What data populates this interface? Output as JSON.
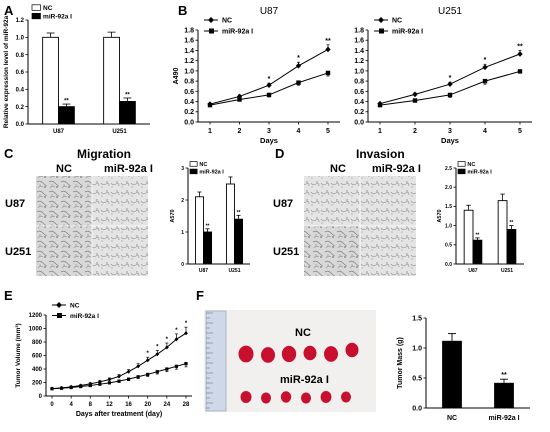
{
  "panels": {
    "A": {
      "letter": "A"
    },
    "B": {
      "letter": "B"
    },
    "C": {
      "letter": "C",
      "title": "Migration"
    },
    "D": {
      "letter": "D",
      "title": "Invasion"
    },
    "E": {
      "letter": "E"
    },
    "F": {
      "letter": "F",
      "photo_labels": [
        "NC",
        "miR-92a I"
      ]
    }
  },
  "micrographs": {
    "col_labels": [
      "NC",
      "miR-92a I"
    ],
    "row_labels": [
      "U87",
      "U251"
    ]
  },
  "significance": "**",
  "significance_single": "*",
  "colors": {
    "nc_fill": "#ffffff",
    "inhibitor_fill": "#000000",
    "tumor": "#c8102e",
    "photo_bg": "#f2efef"
  },
  "chart_data": [
    {
      "id": "A",
      "type": "bar",
      "categories": [
        "U87",
        "U251"
      ],
      "series": [
        {
          "name": "NC",
          "values": [
            1.0,
            1.0
          ],
          "errors": [
            0.05,
            0.06
          ]
        },
        {
          "name": "miR-92a I",
          "values": [
            0.2,
            0.26
          ],
          "errors": [
            0.03,
            0.04
          ]
        }
      ],
      "ylabel": "Relative expression level of miR-92a",
      "ylim": [
        0,
        1.2
      ],
      "yticks": [
        "0.0",
        "0.2",
        "0.4",
        "0.6",
        "0.8",
        "1.0",
        "1.2"
      ],
      "annotations": [
        "**",
        "**"
      ],
      "legend": "top-left"
    },
    {
      "id": "B1",
      "type": "line",
      "title": "U87",
      "x": [
        1,
        2,
        3,
        4,
        5
      ],
      "series": [
        {
          "name": "NC",
          "values": [
            0.35,
            0.5,
            0.72,
            1.1,
            1.42
          ],
          "errors": [
            0.02,
            0.03,
            0.04,
            0.07,
            0.09
          ]
        },
        {
          "name": "miR-92a I",
          "values": [
            0.33,
            0.44,
            0.53,
            0.77,
            0.96
          ],
          "errors": [
            0.02,
            0.03,
            0.04,
            0.05,
            0.06
          ]
        }
      ],
      "xlabel": "Days",
      "ylabel": "A490",
      "ylim": [
        0,
        1.8
      ],
      "yticks": [
        "0.0",
        "0.2",
        "0.4",
        "0.6",
        "0.8",
        "1.0",
        "1.2",
        "1.4",
        "1.6",
        "1.8"
      ],
      "annotations": [
        "*",
        "*",
        "**"
      ],
      "legend": "top-left"
    },
    {
      "id": "B2",
      "type": "line",
      "title": "U251",
      "x": [
        1,
        2,
        3,
        4,
        5
      ],
      "series": [
        {
          "name": "NC",
          "values": [
            0.36,
            0.54,
            0.74,
            1.07,
            1.33
          ],
          "errors": [
            0.02,
            0.03,
            0.04,
            0.06,
            0.07
          ]
        },
        {
          "name": "miR-92a I",
          "values": [
            0.33,
            0.42,
            0.53,
            0.8,
            0.99
          ],
          "errors": [
            0.02,
            0.03,
            0.05,
            0.06,
            0.03
          ]
        }
      ],
      "xlabel": "Days",
      "ylim": [
        0,
        1.8
      ],
      "yticks": [
        "0.0",
        "0.2",
        "0.4",
        "0.6",
        "0.8",
        "1.0",
        "1.2",
        "1.4",
        "1.6",
        "1.8"
      ],
      "annotations": [
        "*",
        "*",
        "**"
      ],
      "legend": "top-left"
    },
    {
      "id": "C",
      "type": "bar",
      "categories": [
        "U87",
        "U251"
      ],
      "series": [
        {
          "name": "NC",
          "values": [
            2.1,
            2.5
          ],
          "errors": [
            0.15,
            0.22
          ]
        },
        {
          "name": "miR-92a I",
          "values": [
            1.0,
            1.4
          ],
          "errors": [
            0.1,
            0.12
          ]
        }
      ],
      "ylabel": "A570",
      "ylim": [
        0,
        3
      ],
      "yticks": [
        "0",
        "1",
        "2",
        "3"
      ],
      "annotations": [
        "**",
        "**"
      ],
      "legend": "top-left"
    },
    {
      "id": "D",
      "type": "bar",
      "categories": [
        "U87",
        "U251"
      ],
      "series": [
        {
          "name": "NC",
          "values": [
            1.4,
            1.65
          ],
          "errors": [
            0.13,
            0.17
          ]
        },
        {
          "name": "miR-92a I",
          "values": [
            0.62,
            0.9
          ],
          "errors": [
            0.06,
            0.1
          ]
        }
      ],
      "ylabel": "A570",
      "ylim": [
        0,
        2.5
      ],
      "yticks": [
        "0.0",
        "0.5",
        "1.0",
        "1.5",
        "2.0",
        "2.5"
      ],
      "annotations": [
        "**",
        "**"
      ],
      "legend": "top-left"
    },
    {
      "id": "E",
      "type": "line",
      "x": [
        0,
        2,
        4,
        6,
        8,
        10,
        12,
        14,
        16,
        18,
        20,
        22,
        24,
        26,
        28
      ],
      "series": [
        {
          "name": "NC",
          "values": [
            110,
            120,
            135,
            155,
            180,
            210,
            245,
            290,
            360,
            440,
            530,
            620,
            720,
            840,
            930
          ],
          "errors": [
            8,
            10,
            12,
            14,
            16,
            18,
            22,
            26,
            32,
            38,
            45,
            55,
            65,
            80,
            90
          ]
        },
        {
          "name": "miR-92a I",
          "values": [
            108,
            115,
            125,
            140,
            155,
            175,
            195,
            220,
            250,
            285,
            320,
            360,
            400,
            440,
            480
          ],
          "errors": [
            8,
            9,
            10,
            11,
            12,
            14,
            16,
            18,
            22,
            26,
            30,
            34,
            38,
            42,
            48
          ]
        }
      ],
      "xlabel": "Days after treatment (day)",
      "ylabel": "Tumor Volume (mm³)",
      "ylim": [
        0,
        1200
      ],
      "yticks": [
        "0",
        "200",
        "400",
        "600",
        "800",
        "1000",
        "1200"
      ],
      "xticks": [
        "0",
        "4",
        "8",
        "12",
        "16",
        "20",
        "24",
        "28"
      ],
      "annotations": [
        "*",
        "*",
        "*",
        "*",
        "*"
      ],
      "legend": "top-left"
    },
    {
      "id": "F",
      "type": "bar",
      "categories": [
        "NC",
        "miR-92a I"
      ],
      "values": [
        1.12,
        0.42
      ],
      "errors": [
        0.12,
        0.06
      ],
      "ylabel": "Tumor Mass (g)",
      "ylim": [
        0,
        1.5
      ],
      "yticks": [
        "0.0",
        "0.5",
        "1.0",
        "1.5"
      ],
      "annotations": [
        "**"
      ]
    }
  ]
}
